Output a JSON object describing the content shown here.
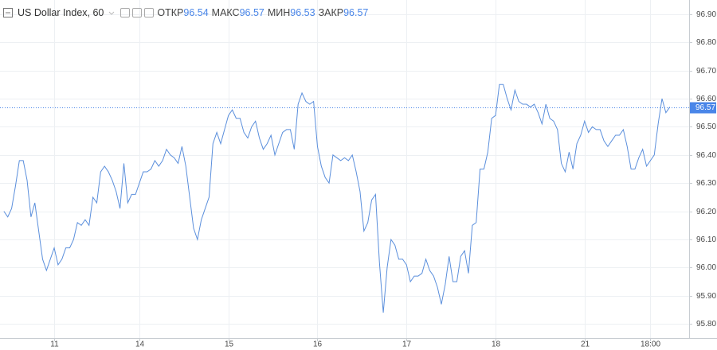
{
  "chart_data": {
    "type": "line",
    "title": "US Dollar Index, 60",
    "ohlc": [
      {
        "label": "ОТКР",
        "value": 96.54
      },
      {
        "label": "МАКС",
        "value": 96.57
      },
      {
        "label": "МИН",
        "value": 96.53
      },
      {
        "label": "ЗАКР",
        "value": 96.57
      }
    ],
    "last_price": 96.57,
    "grid": true,
    "series": [
      {
        "color": "#5b8fdc",
        "x": [
          0,
          1,
          2,
          3,
          4,
          5,
          6,
          7,
          8,
          9,
          10,
          11,
          12,
          13,
          14,
          15,
          16,
          17,
          18,
          19,
          20,
          21,
          22,
          23,
          24,
          25,
          26,
          27,
          28,
          29,
          30,
          31,
          32,
          33,
          34,
          35,
          36,
          37,
          38,
          39,
          40,
          41,
          42,
          43,
          44,
          45,
          46,
          47,
          48,
          49,
          50,
          51,
          52,
          53,
          54,
          55,
          56,
          57,
          58,
          59,
          60,
          61,
          62,
          63,
          64,
          65,
          66,
          67,
          68,
          69,
          70,
          71,
          72,
          73,
          74,
          75,
          76,
          77,
          78,
          79,
          80,
          81,
          82,
          83,
          84,
          85,
          86,
          87,
          88,
          89,
          90,
          91,
          92,
          93,
          94,
          95,
          96,
          97,
          98,
          99,
          100,
          101,
          102,
          103,
          104,
          105,
          106,
          107,
          108,
          109,
          110,
          111,
          112,
          113,
          114,
          115,
          116,
          117,
          118,
          119,
          120,
          121,
          122,
          123,
          124,
          125,
          126,
          127,
          128,
          129,
          130,
          131,
          132,
          133,
          134,
          135,
          136,
          137,
          138,
          139,
          140,
          141,
          142,
          143,
          144,
          145,
          146,
          147,
          148,
          149,
          150,
          151,
          152,
          153,
          154,
          155,
          156,
          157,
          158,
          159,
          160,
          161,
          162,
          163,
          164,
          165,
          166,
          167,
          168,
          169,
          170,
          171,
          172
        ],
        "values": [
          96.2,
          96.18,
          96.21,
          96.29,
          96.38,
          96.38,
          96.31,
          96.18,
          96.23,
          96.13,
          96.03,
          95.99,
          96.03,
          96.07,
          96.01,
          96.03,
          96.07,
          96.07,
          96.1,
          96.16,
          96.15,
          96.17,
          96.15,
          96.25,
          96.23,
          96.34,
          96.36,
          96.34,
          96.31,
          96.27,
          96.21,
          96.37,
          96.23,
          96.26,
          96.26,
          96.3,
          96.34,
          96.34,
          96.35,
          96.38,
          96.36,
          96.38,
          96.42,
          96.4,
          96.39,
          96.37,
          96.43,
          96.36,
          96.25,
          96.14,
          96.1,
          96.17,
          96.21,
          96.25,
          96.44,
          96.48,
          96.44,
          96.49,
          96.54,
          96.56,
          96.53,
          96.53,
          96.48,
          96.46,
          96.5,
          96.52,
          96.46,
          96.42,
          96.44,
          96.47,
          96.4,
          96.44,
          96.48,
          96.49,
          96.49,
          96.42,
          96.58,
          96.62,
          96.59,
          96.58,
          96.59,
          96.43,
          96.36,
          96.32,
          96.3,
          96.4,
          96.39,
          96.38,
          96.39,
          96.38,
          96.4,
          96.34,
          96.27,
          96.13,
          96.16,
          96.24,
          96.26,
          96.02,
          95.84,
          96.0,
          96.1,
          96.08,
          96.03,
          96.03,
          96.01,
          95.95,
          95.97,
          95.97,
          95.98,
          96.03,
          95.99,
          95.97,
          95.93,
          95.87,
          95.94,
          96.04,
          95.95,
          95.95,
          96.04,
          96.06,
          95.98,
          96.15,
          96.16,
          96.35,
          96.35,
          96.41,
          96.53,
          96.54,
          96.65,
          96.65,
          96.6,
          96.56,
          96.63,
          96.59,
          96.58,
          96.58,
          96.57,
          96.58,
          96.55,
          96.51,
          96.58,
          96.53,
          96.52,
          96.49,
          96.37,
          96.34,
          96.41,
          96.35,
          96.44,
          96.47,
          96.52,
          96.48,
          96.5,
          96.49,
          96.49,
          96.45,
          96.43,
          96.45,
          96.47,
          96.47,
          96.49,
          96.43,
          96.35,
          96.35,
          96.39,
          96.42,
          96.36,
          96.38,
          96.4,
          96.51,
          96.6,
          96.55,
          96.57
        ]
      }
    ],
    "xlim": [
      -1,
      177
    ],
    "xticks": [
      {
        "value": 13,
        "label": "11"
      },
      {
        "value": 35,
        "label": "14"
      },
      {
        "value": 58,
        "label": "15"
      },
      {
        "value": 81,
        "label": "16"
      },
      {
        "value": 104,
        "label": "17"
      },
      {
        "value": 127,
        "label": "18"
      },
      {
        "value": 150,
        "label": "21"
      },
      {
        "value": 167,
        "label": "18:00"
      }
    ],
    "ylim": [
      95.75,
      96.95
    ],
    "yticks": [
      {
        "value": 95.8,
        "label": "95.80"
      },
      {
        "value": 95.9,
        "label": "95.90"
      },
      {
        "value": 96.0,
        "label": "96.00"
      },
      {
        "value": 96.1,
        "label": "96.10"
      },
      {
        "value": 96.2,
        "label": "96.20"
      },
      {
        "value": 96.3,
        "label": "96.30"
      },
      {
        "value": 96.4,
        "label": "96.40"
      },
      {
        "value": 96.5,
        "label": "96.50"
      },
      {
        "value": 96.6,
        "label": "96.60"
      },
      {
        "value": 96.7,
        "label": "96.70"
      },
      {
        "value": 96.8,
        "label": "96.80"
      },
      {
        "value": 96.9,
        "label": "96.90"
      }
    ]
  }
}
